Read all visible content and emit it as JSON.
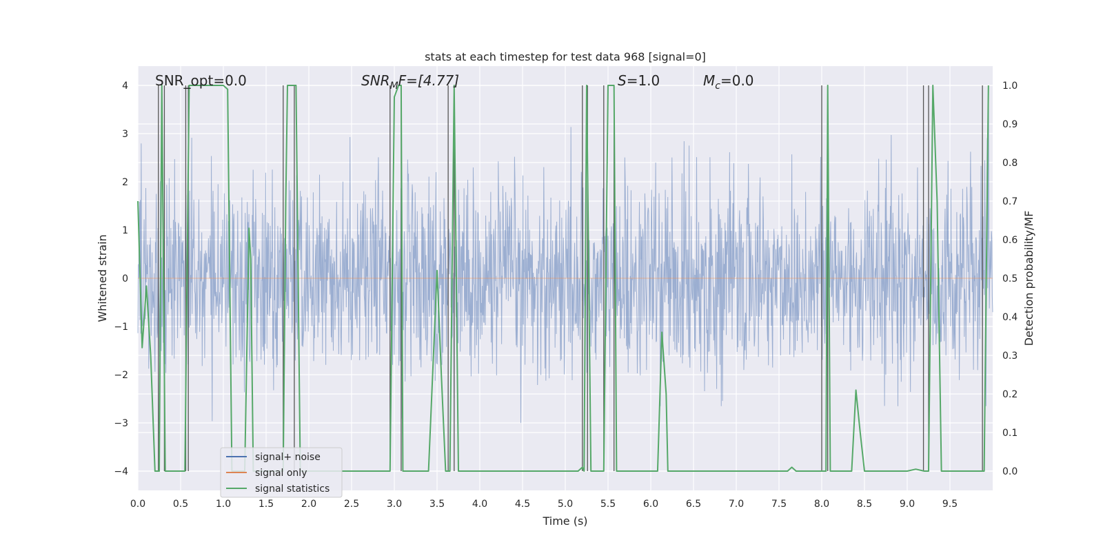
{
  "chart_data": {
    "type": "line",
    "title": "stats at each timestep for test data 968 [signal=0]",
    "xlabel": "Time (s)",
    "ylabel": "Whitened strain",
    "y2label": "Detection probability/MF",
    "xlim": [
      0,
      10
    ],
    "ylim": [
      -4.4,
      4.4
    ],
    "y2lim": [
      -0.05,
      1.05
    ],
    "xticks": [
      "0.0",
      "0.5",
      "1.0",
      "1.5",
      "2.0",
      "2.5",
      "3.0",
      "3.5",
      "4.0",
      "4.5",
      "5.0",
      "5.5",
      "6.0",
      "6.5",
      "7.0",
      "7.5",
      "8.0",
      "8.5",
      "9.0",
      "9.5"
    ],
    "yticks": [
      "4",
      "3",
      "2",
      "1",
      "0",
      "−1",
      "−2",
      "−3",
      "−4"
    ],
    "y2ticks": [
      "1.0",
      "0.9",
      "0.8",
      "0.7",
      "0.6",
      "0.5",
      "0.4",
      "0.3",
      "0.2",
      "0.1",
      "0.0"
    ],
    "grid": true,
    "legend_placement": "lower-left",
    "legend": [
      {
        "label": "signal+ noise",
        "color": "#4c72b0"
      },
      {
        "label": "signal only",
        "color": "#dd8452"
      },
      {
        "label": "signal statistics",
        "color": "#55a868"
      }
    ],
    "annotations": {
      "snr_opt": "SNR_opt=0.0",
      "snr_mf_prefix": "SNR",
      "snr_mf_sub": "M",
      "snr_mf_suffix": "F=[4.77]",
      "s_prefix": "S",
      "s_value": "=1.0",
      "mc_prefix": "M",
      "mc_sub": "c",
      "mc_value": "=0.0"
    },
    "noise": {
      "sigma": 1.0,
      "peak_abs": 4.0,
      "samples": 2048,
      "color": "#4c72b0"
    },
    "signal_only": {
      "values": "zero",
      "color": "#dd8452"
    },
    "detection_markers_x": [
      0.24,
      0.31,
      0.56,
      0.59,
      1.7,
      1.83,
      2.95,
      3.08,
      3.63,
      3.7,
      5.2,
      5.26,
      5.45,
      5.57,
      8.0,
      8.07,
      9.19,
      9.25,
      9.88
    ],
    "statistics_series": {
      "name": "signal statistics",
      "color": "#55a868",
      "x": [
        0.0,
        0.05,
        0.1,
        0.15,
        0.2,
        0.25,
        0.28,
        0.32,
        0.37,
        0.42,
        0.5,
        0.54,
        0.55,
        0.6,
        0.65,
        0.7,
        0.8,
        0.9,
        1.0,
        1.05,
        1.1,
        1.15,
        1.2,
        1.25,
        1.3,
        1.32,
        1.35,
        1.4,
        1.45,
        1.5,
        1.55,
        1.6,
        1.65,
        1.7,
        1.73,
        1.75,
        1.8,
        1.85,
        1.9,
        1.95,
        2.0,
        2.1,
        2.5,
        2.9,
        2.95,
        3.0,
        3.05,
        3.08,
        3.1,
        3.15,
        3.2,
        3.3,
        3.4,
        3.5,
        3.55,
        3.6,
        3.63,
        3.65,
        3.7,
        3.75,
        3.8,
        4.0,
        4.5,
        4.9,
        5.0,
        5.15,
        5.2,
        5.22,
        5.25,
        5.3,
        5.35,
        5.45,
        5.5,
        5.55,
        5.57,
        5.6,
        5.65,
        5.7,
        5.8,
        5.9,
        6.0,
        6.08,
        6.13,
        6.18,
        6.2,
        6.3,
        6.5,
        7.0,
        7.5,
        7.6,
        7.65,
        7.7,
        7.8,
        7.9,
        7.95,
        8.0,
        8.05,
        8.07,
        8.1,
        8.15,
        8.2,
        8.3,
        8.35,
        8.4,
        8.45,
        8.5,
        8.6,
        8.7,
        8.8,
        8.9,
        9.0,
        9.1,
        9.2,
        9.25,
        9.3,
        9.35,
        9.4,
        9.5,
        9.6,
        9.7,
        9.8,
        9.9,
        9.95
      ],
      "y": [
        0.7,
        0.32,
        0.48,
        0.3,
        0.0,
        0.0,
        1.0,
        0.0,
        0.0,
        0.0,
        0.0,
        0.0,
        0.0,
        1.0,
        1.0,
        1.0,
        1.0,
        1.0,
        1.0,
        0.99,
        0.0,
        0.0,
        0.0,
        0.0,
        0.63,
        0.55,
        0.0,
        0.0,
        0.0,
        0.0,
        0.0,
        0.0,
        0.0,
        0.0,
        0.7,
        1.0,
        1.0,
        1.0,
        0.0,
        0.0,
        0.0,
        0.0,
        0.0,
        0.0,
        0.0,
        0.97,
        1.0,
        1.0,
        0.0,
        0.0,
        0.0,
        0.0,
        0.0,
        0.52,
        0.25,
        0.0,
        0.0,
        0.0,
        1.0,
        0.0,
        0.0,
        0.0,
        0.0,
        0.0,
        0.0,
        0.0,
        0.01,
        0.0,
        1.0,
        0.0,
        0.0,
        0.0,
        1.0,
        1.0,
        1.0,
        0.0,
        0.0,
        0.0,
        0.0,
        0.0,
        0.0,
        0.0,
        0.36,
        0.2,
        0.0,
        0.0,
        0.0,
        0.0,
        0.0,
        0.0,
        0.01,
        0.0,
        0.0,
        0.0,
        0.0,
        0.0,
        0.0,
        1.0,
        0.0,
        0.0,
        0.0,
        0.0,
        0.0,
        0.21,
        0.1,
        0.0,
        0.0,
        0.0,
        0.0,
        0.0,
        0.0,
        0.005,
        0.0,
        0.0,
        1.0,
        0.7,
        0.0,
        0.0,
        0.0,
        0.0,
        0.0,
        0.0,
        1.0
      ]
    }
  }
}
